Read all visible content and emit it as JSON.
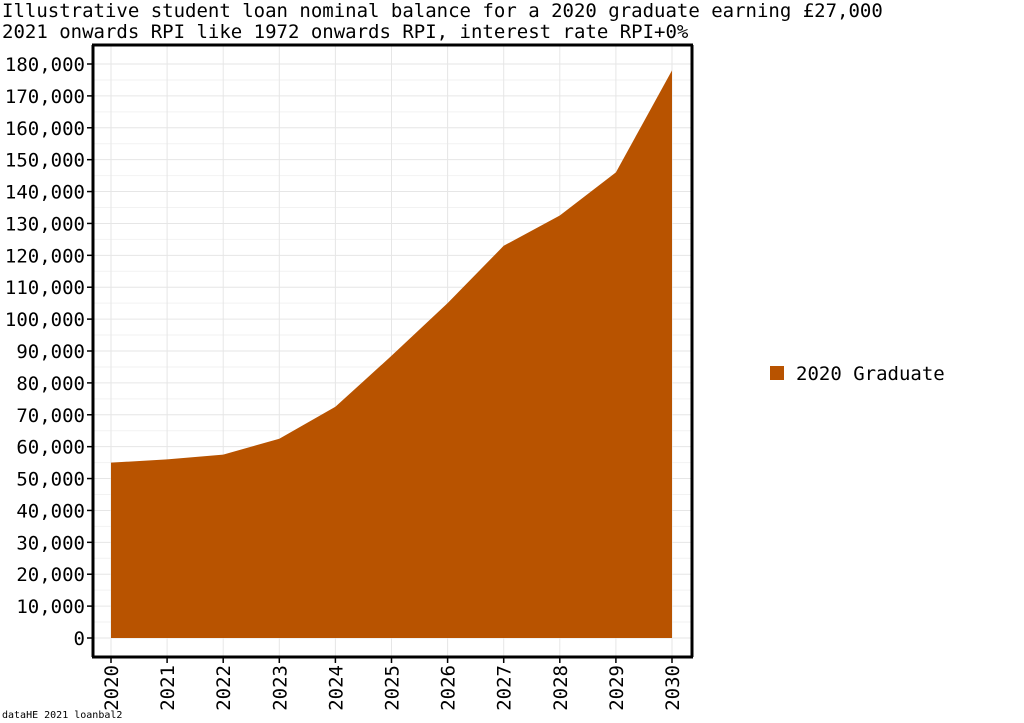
{
  "title_line1": "Illustrative student loan nominal balance for a 2020 graduate earning £27,000",
  "title_line2": "2021 onwards RPI like 1972 onwards RPI, interest rate RPI+0%",
  "footer": "dataHE 2021 loanbal2",
  "colors": {
    "area": "#b85300",
    "grid": "#e6e6e6",
    "axis": "#000000"
  },
  "chart_data": {
    "type": "area",
    "title": "Illustrative student loan nominal balance for a 2020 graduate earning £27,000",
    "subtitle": "2021 onwards RPI like 1972 onwards RPI, interest rate RPI+0%",
    "xlabel": "",
    "ylabel": "",
    "x": [
      "2020",
      "2021",
      "2022",
      "2023",
      "2024",
      "2025",
      "2026",
      "2027",
      "2028",
      "2029",
      "2030"
    ],
    "series": [
      {
        "name": "2020 Graduate",
        "values": [
          55000,
          56000,
          57500,
          62500,
          72500,
          88500,
          105000,
          123000,
          132500,
          146000,
          178000
        ]
      }
    ],
    "ylim": [
      0,
      180000
    ],
    "yticks": [
      0,
      10000,
      20000,
      30000,
      40000,
      50000,
      60000,
      70000,
      80000,
      90000,
      100000,
      110000,
      120000,
      130000,
      140000,
      150000,
      160000,
      170000,
      180000
    ],
    "ytick_labels": [
      "0",
      "10,000",
      "20,000",
      "30,000",
      "40,000",
      "50,000",
      "60,000",
      "70,000",
      "80,000",
      "90,000",
      "100,000",
      "110,000",
      "120,000",
      "130,000",
      "140,000",
      "150,000",
      "160,000",
      "170,000",
      "180,000"
    ],
    "grid": true,
    "legend_position": "right"
  }
}
